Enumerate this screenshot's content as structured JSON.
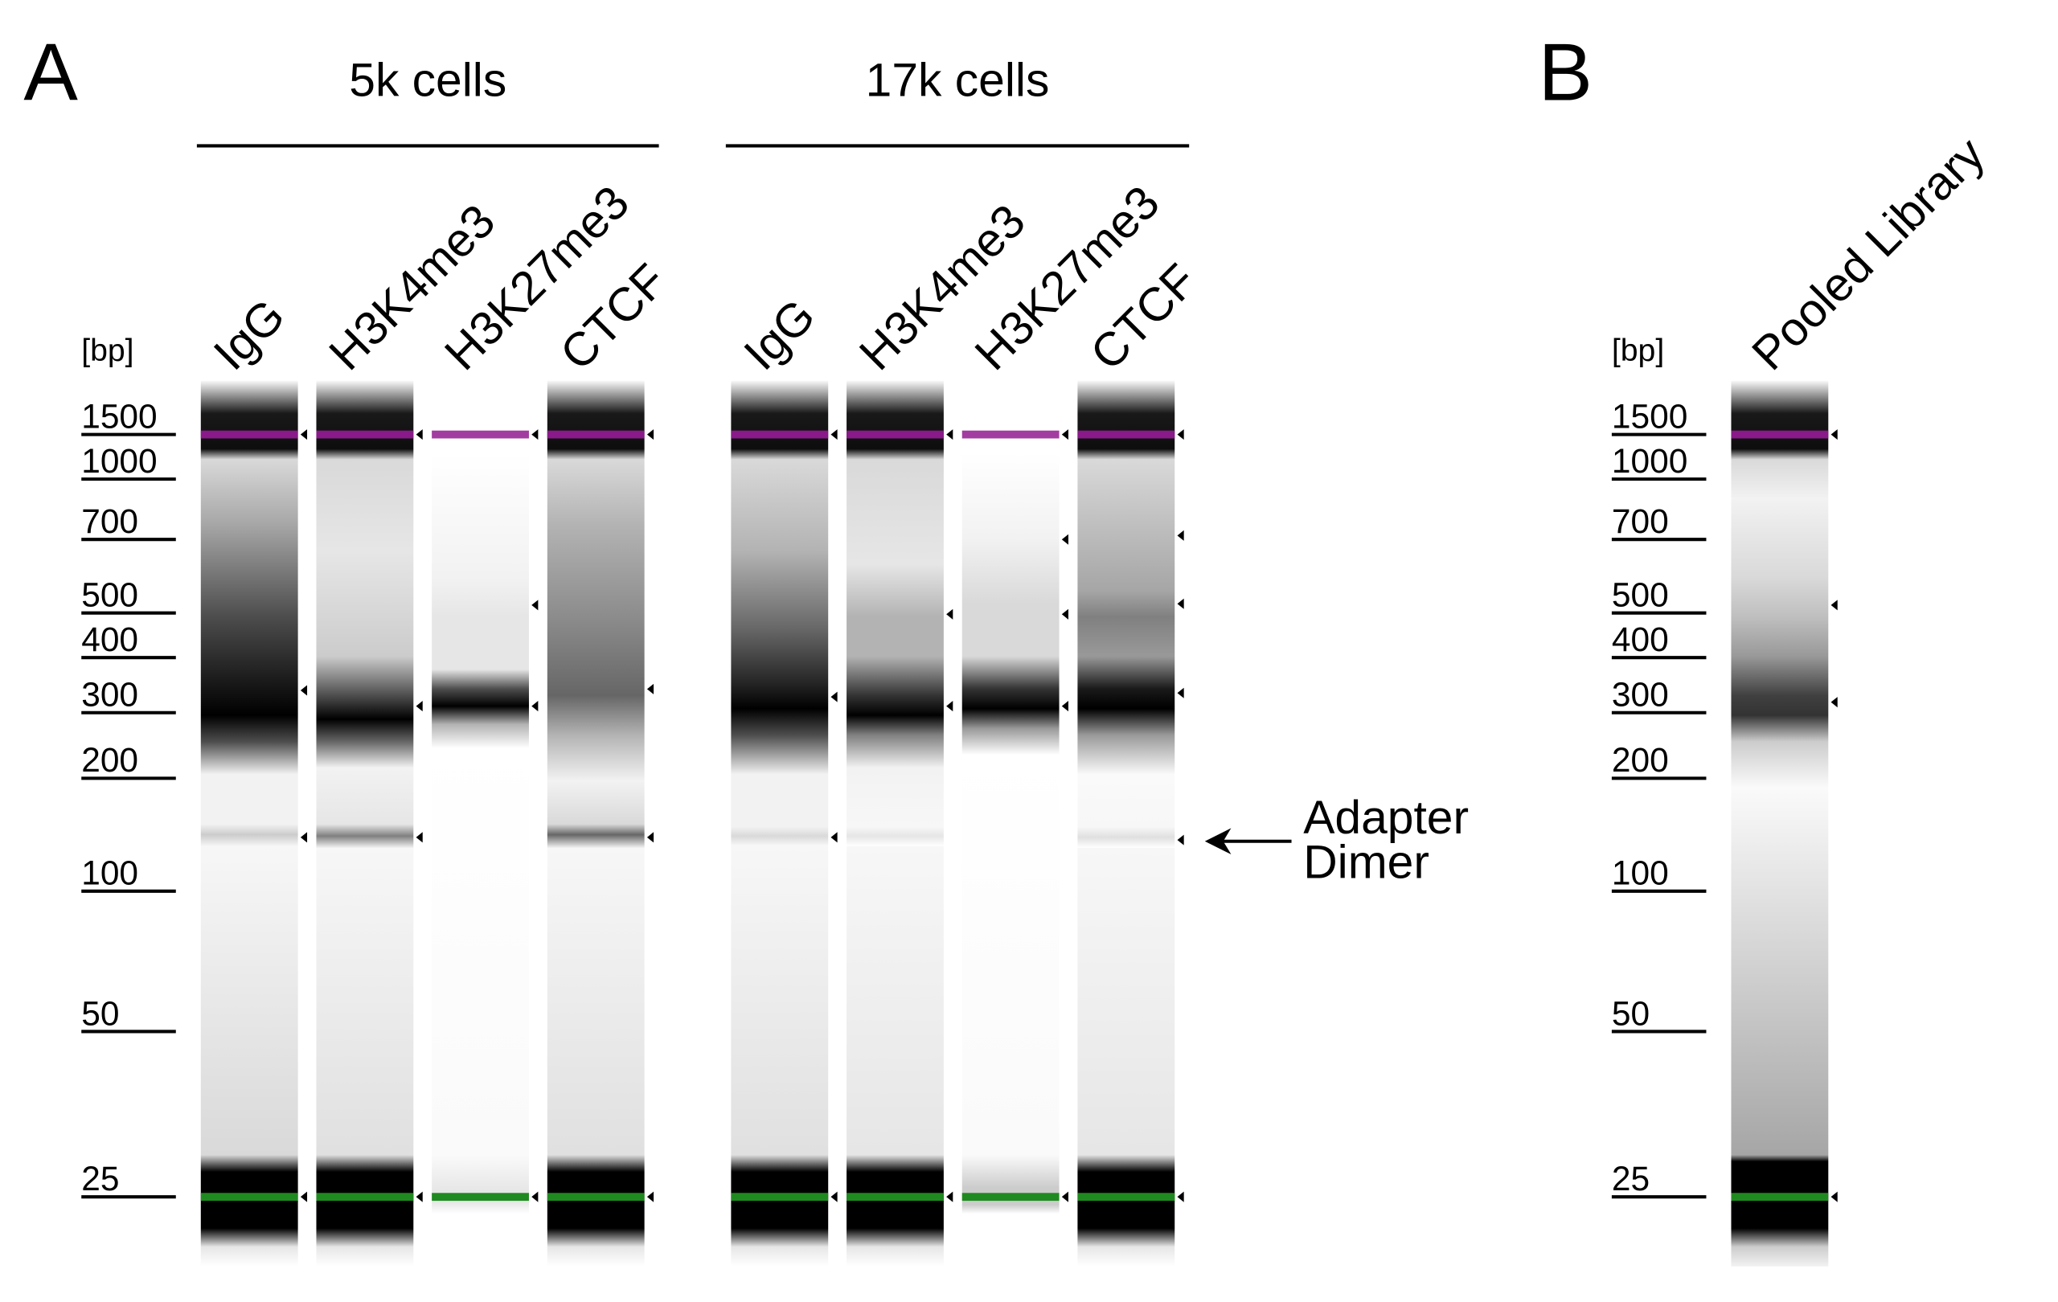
{
  "panel_a": {
    "label": "A",
    "ladder_unit": "[bp]",
    "ladder_labels": [
      "1500",
      "1000",
      "700",
      "500",
      "400",
      "300",
      "200",
      "100",
      "50",
      "25"
    ],
    "groups": [
      {
        "title": "5k cells",
        "lanes": [
          "IgG",
          "H3K4me3",
          "H3K27me3",
          "CTCF"
        ]
      },
      {
        "title": "17k cells",
        "lanes": [
          "IgG",
          "H3K4me3",
          "H3K27me3",
          "CTCF"
        ]
      }
    ],
    "annotation": [
      "Adapter",
      "Dimer"
    ]
  },
  "panel_b": {
    "label": "B",
    "ladder_unit": "[bp]",
    "ladder_labels": [
      "1500",
      "1000",
      "700",
      "500",
      "400",
      "300",
      "200",
      "100",
      "50",
      "25"
    ],
    "lanes": [
      "Pooled Library"
    ]
  }
}
